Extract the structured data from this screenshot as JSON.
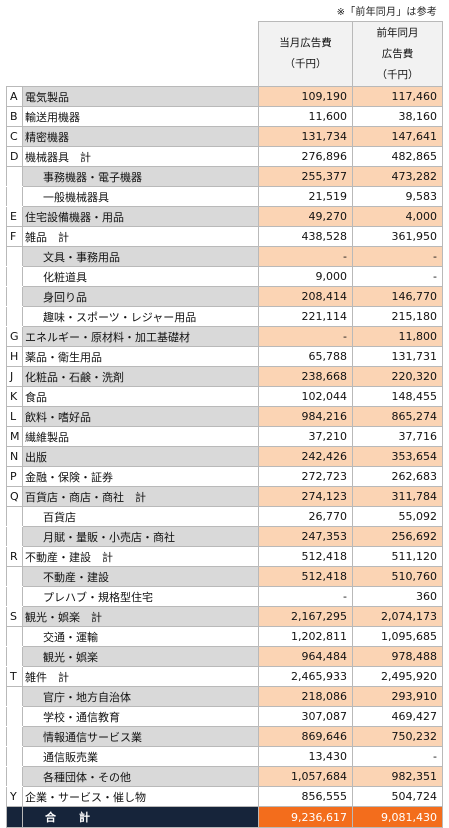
{
  "note": "※「前年同月」は参考",
  "header": {
    "current_lines": [
      "当月広告費",
      "（千円）"
    ],
    "previous_lines": [
      "前年同月",
      "広告費",
      "（千円）"
    ]
  },
  "rows": [
    {
      "code": "A",
      "name": "電気製品",
      "current": "109,190",
      "previous": "117,460",
      "sub": false
    },
    {
      "code": "B",
      "name": "輸送用機器",
      "current": "11,600",
      "previous": "38,160",
      "sub": false
    },
    {
      "code": "C",
      "name": "精密機器",
      "current": "131,734",
      "previous": "147,641",
      "sub": false
    },
    {
      "code": "D",
      "name": "機械器具　計",
      "current": "276,896",
      "previous": "482,865",
      "sub": false
    },
    {
      "code": "",
      "name": "事務機器・電子機器",
      "current": "255,377",
      "previous": "473,282",
      "sub": true
    },
    {
      "code": "",
      "name": "一般機械器具",
      "current": "21,519",
      "previous": "9,583",
      "sub": true
    },
    {
      "code": "E",
      "name": "住宅設備機器・用品",
      "current": "49,270",
      "previous": "4,000",
      "sub": false
    },
    {
      "code": "F",
      "name": "雑品　計",
      "current": "438,528",
      "previous": "361,950",
      "sub": false
    },
    {
      "code": "",
      "name": "文具・事務用品",
      "current": "-",
      "previous": "-",
      "sub": true
    },
    {
      "code": "",
      "name": "化粧道具",
      "current": "9,000",
      "previous": "-",
      "sub": true
    },
    {
      "code": "",
      "name": "身回り品",
      "current": "208,414",
      "previous": "146,770",
      "sub": true
    },
    {
      "code": "",
      "name": "趣味・スポーツ・レジャー用品",
      "current": "221,114",
      "previous": "215,180",
      "sub": true
    },
    {
      "code": "G",
      "name": "エネルギー・原材料・加工基礎材",
      "current": "-",
      "previous": "11,800",
      "sub": false
    },
    {
      "code": "H",
      "name": "薬品・衛生用品",
      "current": "65,788",
      "previous": "131,731",
      "sub": false
    },
    {
      "code": "J",
      "name": "化粧品・石鹸・洗剤",
      "current": "238,668",
      "previous": "220,320",
      "sub": false
    },
    {
      "code": "K",
      "name": "食品",
      "current": "102,044",
      "previous": "148,455",
      "sub": false
    },
    {
      "code": "L",
      "name": "飲料・嗜好品",
      "current": "984,216",
      "previous": "865,274",
      "sub": false
    },
    {
      "code": "M",
      "name": "繊維製品",
      "current": "37,210",
      "previous": "37,716",
      "sub": false
    },
    {
      "code": "N",
      "name": "出版",
      "current": "242,426",
      "previous": "353,654",
      "sub": false
    },
    {
      "code": "P",
      "name": "金融・保険・証券",
      "current": "272,723",
      "previous": "262,683",
      "sub": false
    },
    {
      "code": "Q",
      "name": "百貨店・商店・商社　計",
      "current": "274,123",
      "previous": "311,784",
      "sub": false
    },
    {
      "code": "",
      "name": "百貨店",
      "current": "26,770",
      "previous": "55,092",
      "sub": true
    },
    {
      "code": "",
      "name": "月賦・量販・小売店・商社",
      "current": "247,353",
      "previous": "256,692",
      "sub": true
    },
    {
      "code": "R",
      "name": "不動産・建設　計",
      "current": "512,418",
      "previous": "511,120",
      "sub": false
    },
    {
      "code": "",
      "name": "不動産・建設",
      "current": "512,418",
      "previous": "510,760",
      "sub": true
    },
    {
      "code": "",
      "name": "プレハブ・規格型住宅",
      "current": "-",
      "previous": "360",
      "sub": true
    },
    {
      "code": "S",
      "name": "観光・娯楽　計",
      "current": "2,167,295",
      "previous": "2,074,173",
      "sub": false
    },
    {
      "code": "",
      "name": "交通・運輸",
      "current": "1,202,811",
      "previous": "1,095,685",
      "sub": true
    },
    {
      "code": "",
      "name": "観光・娯楽",
      "current": "964,484",
      "previous": "978,488",
      "sub": true
    },
    {
      "code": "T",
      "name": "雑件　計",
      "current": "2,465,933",
      "previous": "2,495,920",
      "sub": false
    },
    {
      "code": "",
      "name": "官庁・地方自治体",
      "current": "218,086",
      "previous": "293,910",
      "sub": true
    },
    {
      "code": "",
      "name": "学校・通信教育",
      "current": "307,087",
      "previous": "469,427",
      "sub": true
    },
    {
      "code": "",
      "name": "情報通信サービス業",
      "current": "869,646",
      "previous": "750,232",
      "sub": true
    },
    {
      "code": "",
      "name": "通信販売業",
      "current": "13,430",
      "previous": "-",
      "sub": true
    },
    {
      "code": "",
      "name": "各種団体・その他",
      "current": "1,057,684",
      "previous": "982,351",
      "sub": true
    },
    {
      "code": "Y",
      "name": "企業・サービス・催し物",
      "current": "856,555",
      "previous": "504,724",
      "sub": false
    }
  ],
  "total": {
    "label": "合　計",
    "current": "9,236,617",
    "previous": "9,081,430"
  }
}
